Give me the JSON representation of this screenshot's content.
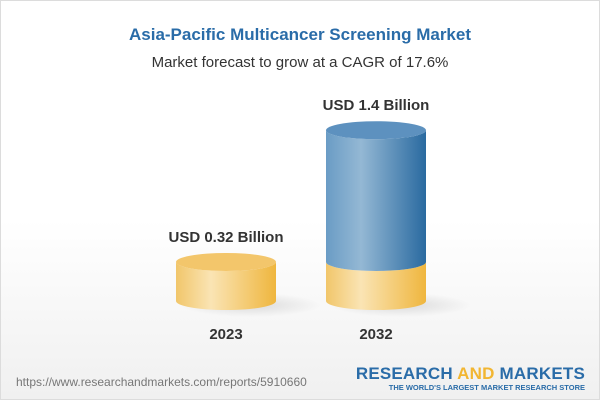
{
  "title": "Asia-Pacific Multicancer Screening Market",
  "subtitle": "Market forecast to grow at a CAGR of 17.6%",
  "chart_data": {
    "type": "bar",
    "style": "3d-cylinder",
    "categories": [
      "2023",
      "2032"
    ],
    "values": [
      0.32,
      1.4
    ],
    "data_labels": [
      "USD 0.32 Billion",
      "USD 1.4 Billion"
    ],
    "unit": "USD Billion",
    "colors": {
      "base": "#f2c462",
      "growth": "#3f7db0"
    }
  },
  "footer": {
    "url": "https://www.researchandmarkets.com/reports/5910660",
    "logo_word1": "RESEARCH",
    "logo_word2": "AND",
    "logo_word3": "MARKETS",
    "logo_tagline": "THE WORLD'S LARGEST MARKET RESEARCH STORE"
  }
}
